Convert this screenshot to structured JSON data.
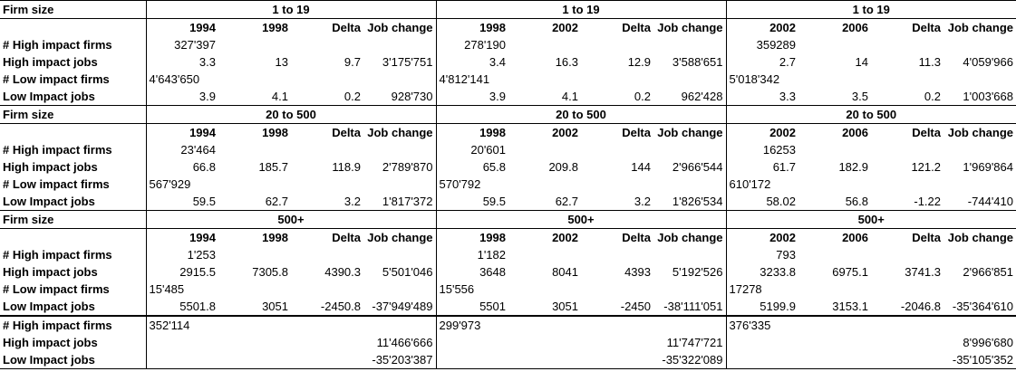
{
  "labels": {
    "firm_size": "Firm size",
    "high_firms": "# High impact firms",
    "high_jobs": "High impact jobs",
    "low_firms": "# Low impact firms",
    "low_jobs": "Low Impact jobs",
    "delta": "Delta",
    "job_change": "Job change"
  },
  "sections": [
    {
      "title": "1 to 19",
      "blocks": [
        {
          "y1": "1994",
          "y2": "1998",
          "high_firms": "327'397",
          "high_jobs": [
            "3.3",
            "13",
            "9.7",
            "3'175'751"
          ],
          "low_firms": "4'643'650",
          "low_jobs": [
            "3.9",
            "4.1",
            "0.2",
            "928'730"
          ]
        },
        {
          "y1": "1998",
          "y2": "2002",
          "high_firms": "278'190",
          "high_jobs": [
            "3.4",
            "16.3",
            "12.9",
            "3'588'651"
          ],
          "low_firms": "4'812'141",
          "low_jobs": [
            "3.9",
            "4.1",
            "0.2",
            "962'428"
          ]
        },
        {
          "y1": "2002",
          "y2": "2006",
          "high_firms": "359289",
          "high_jobs": [
            "2.7",
            "14",
            "11.3",
            "4'059'966"
          ],
          "low_firms": "5'018'342",
          "low_jobs": [
            "3.3",
            "3.5",
            "0.2",
            "1'003'668"
          ]
        }
      ]
    },
    {
      "title": "20 to 500",
      "blocks": [
        {
          "y1": "1994",
          "y2": "1998",
          "high_firms": "23'464",
          "high_jobs": [
            "66.8",
            "185.7",
            "118.9",
            "2'789'870"
          ],
          "low_firms": "567'929",
          "low_jobs": [
            "59.5",
            "62.7",
            "3.2",
            "1'817'372"
          ]
        },
        {
          "y1": "1998",
          "y2": "2002",
          "high_firms": "20'601",
          "high_jobs": [
            "65.8",
            "209.8",
            "144",
            "2'966'544"
          ],
          "low_firms": "570'792",
          "low_jobs": [
            "59.5",
            "62.7",
            "3.2",
            "1'826'534"
          ]
        },
        {
          "y1": "2002",
          "y2": "2006",
          "high_firms": "16253",
          "high_jobs": [
            "61.7",
            "182.9",
            "121.2",
            "1'969'864"
          ],
          "low_firms": "610'172",
          "low_jobs": [
            "58.02",
            "56.8",
            "-1.22",
            "-744'410"
          ]
        }
      ]
    },
    {
      "title": "500+",
      "blocks": [
        {
          "y1": "1994",
          "y2": "1998",
          "high_firms": "1'253",
          "high_jobs": [
            "2915.5",
            "7305.8",
            "4390.3",
            "5'501'046"
          ],
          "low_firms": "15'485",
          "low_jobs": [
            "5501.8",
            "3051",
            "-2450.8",
            "-37'949'489"
          ]
        },
        {
          "y1": "1998",
          "y2": "2002",
          "high_firms": "1'182",
          "high_jobs": [
            "3648",
            "8041",
            "4393",
            "5'192'526"
          ],
          "low_firms": "15'556",
          "low_jobs": [
            "5501",
            "3051",
            "-2450",
            "-38'111'051"
          ]
        },
        {
          "y1": "2002",
          "y2": "2006",
          "high_firms": "793",
          "high_jobs": [
            "3233.8",
            "6975.1",
            "3741.3",
            "2'966'851"
          ],
          "low_firms": "17278",
          "low_jobs": [
            "5199.9",
            "3153.1",
            "-2046.8",
            "-35'364'610"
          ]
        }
      ]
    }
  ],
  "totals": {
    "high_firms": [
      "352'114",
      "299'973",
      "376'335"
    ],
    "high_jobs": [
      "11'466'666",
      "11'747'721",
      "8'996'680"
    ],
    "low_jobs": [
      "-35'203'387",
      "-35'322'089",
      "-35'105'352"
    ]
  }
}
